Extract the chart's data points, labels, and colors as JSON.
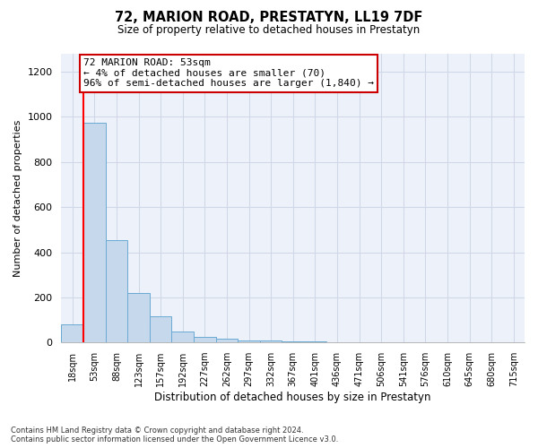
{
  "title": "72, MARION ROAD, PRESTATYN, LL19 7DF",
  "subtitle": "Size of property relative to detached houses in Prestatyn",
  "xlabel": "Distribution of detached houses by size in Prestatyn",
  "ylabel": "Number of detached properties",
  "bar_labels": [
    "18sqm",
    "53sqm",
    "88sqm",
    "123sqm",
    "157sqm",
    "192sqm",
    "227sqm",
    "262sqm",
    "297sqm",
    "332sqm",
    "367sqm",
    "401sqm",
    "436sqm",
    "471sqm",
    "506sqm",
    "541sqm",
    "576sqm",
    "610sqm",
    "645sqm",
    "680sqm",
    "715sqm"
  ],
  "bar_values": [
    80,
    975,
    455,
    220,
    115,
    50,
    25,
    15,
    10,
    7,
    5,
    3,
    2,
    2,
    2,
    1,
    1,
    1,
    1,
    1,
    1
  ],
  "bar_color": "#c5d8ec",
  "bar_edgecolor": "#6aaad4",
  "background_color": "#edf2fa",
  "grid_color": "#d0d8e8",
  "red_line_index": 1,
  "annotation_text": "72 MARION ROAD: 53sqm\n← 4% of detached houses are smaller (70)\n96% of semi-detached houses are larger (1,840) →",
  "annotation_box_color": "#ffffff",
  "annotation_border_color": "#cc0000",
  "footnote": "Contains HM Land Registry data © Crown copyright and database right 2024.\nContains public sector information licensed under the Open Government Licence v3.0.",
  "ylim": [
    0,
    1280
  ],
  "yticks": [
    0,
    200,
    400,
    600,
    800,
    1000,
    1200
  ]
}
